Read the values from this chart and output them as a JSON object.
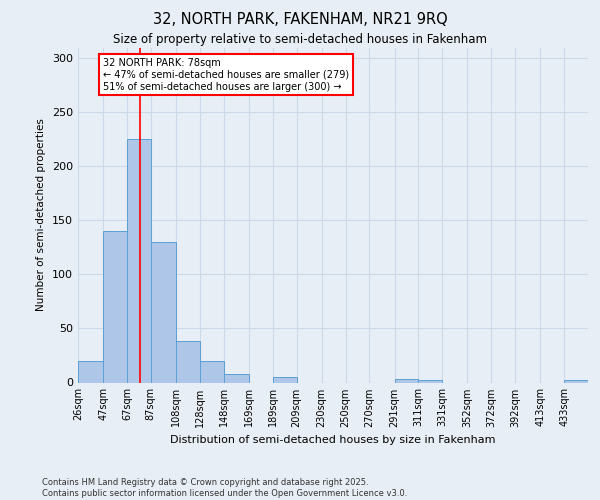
{
  "title1": "32, NORTH PARK, FAKENHAM, NR21 9RQ",
  "title2": "Size of property relative to semi-detached houses in Fakenham",
  "xlabel": "Distribution of semi-detached houses by size in Fakenham",
  "ylabel": "Number of semi-detached properties",
  "bin_labels": [
    "26sqm",
    "47sqm",
    "67sqm",
    "87sqm",
    "108sqm",
    "128sqm",
    "148sqm",
    "169sqm",
    "189sqm",
    "209sqm",
    "230sqm",
    "250sqm",
    "270sqm",
    "291sqm",
    "311sqm",
    "331sqm",
    "352sqm",
    "372sqm",
    "392sqm",
    "413sqm",
    "433sqm"
  ],
  "bin_edges": [
    26,
    47,
    67,
    87,
    108,
    128,
    148,
    169,
    189,
    209,
    230,
    250,
    270,
    291,
    311,
    331,
    352,
    372,
    392,
    413,
    433
  ],
  "values": [
    20,
    140,
    225,
    130,
    38,
    20,
    8,
    0,
    5,
    0,
    0,
    0,
    0,
    3,
    2,
    0,
    0,
    0,
    0,
    0,
    2
  ],
  "bar_color": "#aec6e8",
  "bar_edge_color": "#5a9fd4",
  "vline_x": 78,
  "vline_color": "red",
  "annotation_text": "32 NORTH PARK: 78sqm\n← 47% of semi-detached houses are smaller (279)\n51% of semi-detached houses are larger (300) →",
  "annotation_box_color": "white",
  "annotation_box_edge": "red",
  "ylim": [
    0,
    310
  ],
  "yticks": [
    0,
    50,
    100,
    150,
    200,
    250,
    300
  ],
  "grid_color": "#ccd9e8",
  "background_color": "#e8eef5",
  "footer": "Contains HM Land Registry data © Crown copyright and database right 2025.\nContains public sector information licensed under the Open Government Licence v3.0."
}
